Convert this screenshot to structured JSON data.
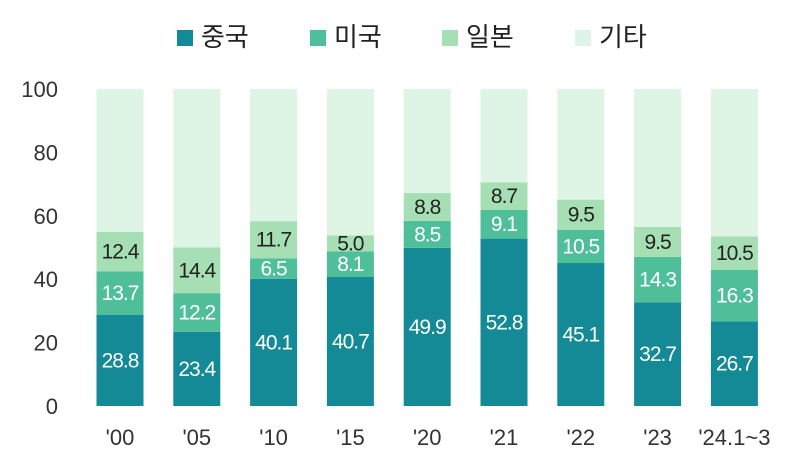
{
  "chart_data": {
    "type": "bar",
    "stacked": true,
    "legend_position": "top",
    "grid": false,
    "ylim": [
      0,
      100
    ],
    "yticks": [
      "0",
      "20",
      "40",
      "60",
      "80",
      "100"
    ],
    "categories": [
      "'00",
      "'05",
      "'10",
      "'15",
      "'20",
      "'21",
      "'22",
      "'23",
      "'24.1~3"
    ],
    "series": [
      {
        "name": "중국",
        "color": "#138a96",
        "label_color": "#ffffff",
        "values": [
          28.8,
          23.4,
          40.1,
          40.7,
          49.9,
          52.8,
          45.1,
          32.7,
          26.7
        ],
        "labels": [
          "28.8",
          "23.4",
          "40.1",
          "40.7",
          "49.9",
          "52.8",
          "45.1",
          "32.7",
          "26.7"
        ]
      },
      {
        "name": "미국",
        "color": "#4fbf99",
        "label_color": "#ffffff",
        "values": [
          13.7,
          12.2,
          6.5,
          8.1,
          8.5,
          9.1,
          10.5,
          14.3,
          16.3
        ],
        "labels": [
          "13.7",
          "12.2",
          "6.5",
          "8.1",
          "8.5",
          "9.1",
          "10.5",
          "14.3",
          "16.3"
        ]
      },
      {
        "name": "일본",
        "color": "#a6dfb3",
        "label_color": "#222222",
        "values": [
          12.4,
          14.4,
          11.7,
          5.0,
          8.8,
          8.7,
          9.5,
          9.5,
          10.5
        ],
        "labels": [
          "12.4",
          "14.4",
          "11.7",
          "5.0",
          "8.8",
          "8.7",
          "9.5",
          "9.5",
          "10.5"
        ]
      },
      {
        "name": "기타",
        "color": "#def4e5",
        "label_color": "#222222",
        "values": [
          45.1,
          50.0,
          41.7,
          46.2,
          32.8,
          29.4,
          34.9,
          43.5,
          46.5
        ],
        "labels": []
      }
    ]
  }
}
